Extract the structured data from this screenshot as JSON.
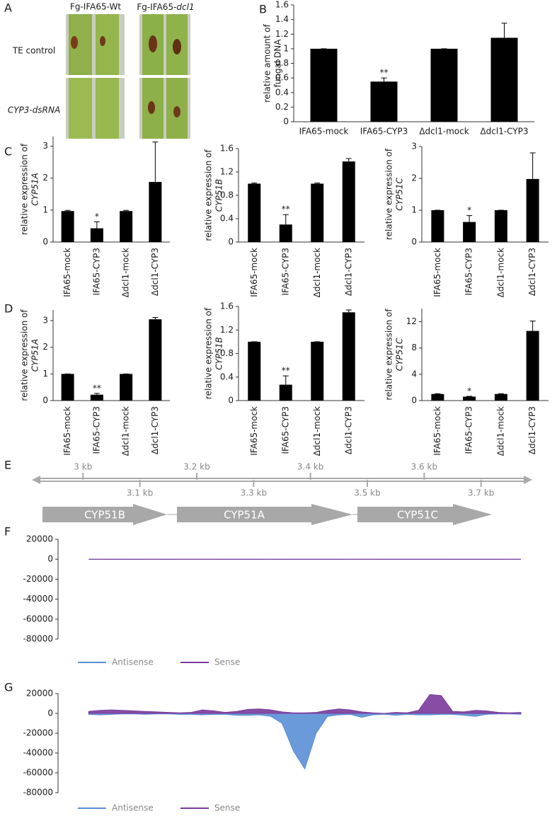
{
  "photo_panel": {
    "panel": "A",
    "columns": [
      [
        "Fg-IFA65-Wt"
      ],
      [
        "Fg-IFA65-",
        "dcl1"
      ]
    ],
    "rows": [
      "TE control",
      "CYP3-dsRNA"
    ]
  },
  "genome_track": {
    "panel": "E",
    "xlim": [
      2.91,
      3.79
    ],
    "ticks": [
      {
        "value": 3,
        "label": "3 kb"
      },
      {
        "value": 3.1,
        "label": "3.1 kb"
      },
      {
        "value": 3.2,
        "label": "3.2 kb"
      },
      {
        "value": 3.3,
        "label": "3.3 kb"
      },
      {
        "value": 3.4,
        "label": "3.4 kb"
      },
      {
        "value": 3.5,
        "label": "3.5 kb"
      },
      {
        "value": 3.6,
        "label": "3.6 kb"
      },
      {
        "value": 3.7,
        "label": "3.7 kb"
      }
    ],
    "genes": [
      "CYP51B",
      "CYP51A",
      "CYP51C"
    ]
  },
  "chart_data": [
    {
      "type": "bar",
      "panel": "B",
      "y_label": [
        "relative amount of",
        "fungal DNA"
      ],
      "categories": [
        "IFA65-mock",
        "IFA65-CYP3",
        "Δdcl1-mock",
        "Δdcl1-CYP3"
      ],
      "values": [
        1,
        0.55,
        1,
        1.15
      ],
      "errors": [
        0,
        0.05,
        0,
        0.2
      ],
      "significance": [
        null,
        "**",
        null,
        null
      ],
      "color": "#000000",
      "ylim": [
        0,
        1.6
      ],
      "yticks": [
        0,
        0.2,
        0.4,
        0.6,
        0.8,
        1,
        1.2,
        1.4,
        1.6
      ]
    },
    {
      "type": "bar",
      "panel": "C",
      "y_label": [
        "relative expression of",
        "CYP51A"
      ],
      "categories": [
        "IFA65-mock",
        "IFA65-CYP3",
        "Δdcl1-mock",
        "Δdcl1-CYP3"
      ],
      "values": [
        0.97,
        0.43,
        0.97,
        1.88
      ],
      "errors": [
        0.02,
        0.2,
        0.02,
        1.25
      ],
      "significance": [
        null,
        "*",
        null,
        null
      ],
      "color": "#000000",
      "ylim": [
        0,
        3.3
      ],
      "yticks": [
        0,
        1,
        2,
        3
      ]
    },
    {
      "type": "bar",
      "y_label": [
        "relative expression of",
        "CYP51B"
      ],
      "categories": [
        "IFA65-mock",
        "IFA65-CYP3",
        "Δdcl1-mock",
        "Δdcl1-CYP3"
      ],
      "values": [
        1,
        0.3,
        1,
        1.38
      ],
      "errors": [
        0.01,
        0.17,
        0.01,
        0.05
      ],
      "significance": [
        null,
        "**",
        null,
        null
      ],
      "color": "#000000",
      "ylim": [
        0,
        1.6
      ],
      "yticks": [
        0,
        0.4,
        0.8,
        1.2,
        1.6
      ]
    },
    {
      "type": "bar",
      "y_label": [
        "relative expression of",
        "CYP51C"
      ],
      "categories": [
        "IFA65-mock",
        "IFA65-CYP3",
        "Δdcl1-mock",
        "Δdcl1-CYP3"
      ],
      "values": [
        1,
        0.63,
        1,
        1.98
      ],
      "errors": [
        0,
        0.2,
        0,
        0.82
      ],
      "significance": [
        null,
        "*",
        null,
        null
      ],
      "color": "#000000",
      "ylim": [
        0,
        3
      ],
      "yticks": [
        0,
        1,
        2,
        3
      ]
    },
    {
      "type": "bar",
      "panel": "D",
      "y_label": [
        "relative expression of",
        "CYP51A"
      ],
      "categories": [
        "IFA65-mock",
        "IFA65-CYP3",
        "Δdcl1-mock",
        "Δdcl1-CYP3"
      ],
      "values": [
        1,
        0.22,
        1,
        3.05
      ],
      "errors": [
        0,
        0.05,
        0,
        0.07
      ],
      "significance": [
        null,
        "**",
        null,
        null
      ],
      "color": "#000000",
      "ylim": [
        0,
        3.4
      ],
      "yticks": [
        0,
        1,
        2,
        3
      ]
    },
    {
      "type": "bar",
      "y_label": [
        "relative expression of",
        "CYP51B"
      ],
      "categories": [
        "IFA65-mock",
        "IFA65-CYP3",
        "Δdcl1-mock",
        "Δdcl1-CYP3"
      ],
      "values": [
        1,
        0.27,
        1,
        1.5
      ],
      "errors": [
        0,
        0.15,
        0,
        0.04
      ],
      "significance": [
        null,
        "**",
        null,
        null
      ],
      "color": "#000000",
      "ylim": [
        0,
        1.6
      ],
      "yticks": [
        0,
        0.4,
        0.8,
        1.2,
        1.6
      ]
    },
    {
      "type": "bar",
      "y_label": [
        "relative expression of",
        "CYP51C"
      ],
      "categories": [
        "IFA65-mock",
        "IFA65-CYP3",
        "Δdcl1-mock",
        "Δdcl1-CYP3"
      ],
      "values": [
        1,
        0.6,
        1,
        10.6
      ],
      "errors": [
        0.05,
        0.05,
        0.05,
        1.5
      ],
      "significance": [
        null,
        "*",
        null,
        null
      ],
      "color": "#000000",
      "ylim": [
        0,
        14
      ],
      "yticks": [
        0,
        4,
        8,
        12
      ]
    },
    {
      "type": "area",
      "panel": "F",
      "xlim": [
        2.91,
        3.79
      ],
      "ylim": [
        -80000,
        20000
      ],
      "yticks": [
        -80000,
        -60000,
        -40000,
        -20000,
        0,
        20000
      ],
      "x": [
        3.01,
        3.03,
        3.05,
        3.07,
        3.09,
        3.11,
        3.13,
        3.15,
        3.17,
        3.19,
        3.21,
        3.23,
        3.25,
        3.27,
        3.29,
        3.31,
        3.33,
        3.35,
        3.37,
        3.39,
        3.41,
        3.43,
        3.45,
        3.47,
        3.49,
        3.51,
        3.53,
        3.55,
        3.57,
        3.59,
        3.61,
        3.63,
        3.65,
        3.67,
        3.69,
        3.71,
        3.73,
        3.75,
        3.77
      ],
      "series": [
        {
          "name": "Antisense",
          "color": "#5b8fd6",
          "values": [
            0,
            0,
            -200,
            -200,
            -200,
            0,
            0,
            -200,
            0,
            0,
            0,
            0,
            -200,
            -200,
            -200,
            -200,
            0,
            -200,
            -200,
            -200,
            -200,
            -200,
            -200,
            0,
            0,
            0,
            -200,
            -200,
            -200,
            -200,
            -200,
            -200,
            -200,
            0,
            -200,
            0,
            -200,
            0,
            0
          ]
        },
        {
          "name": "Sense",
          "color": "#7a3a9a",
          "values": [
            0,
            0,
            0,
            0,
            0,
            0,
            0,
            0,
            0,
            0,
            0,
            0,
            0,
            0,
            0,
            0,
            0,
            0,
            0,
            0,
            0,
            0,
            0,
            0,
            0,
            0,
            0,
            0,
            0,
            0,
            0,
            0,
            0,
            0,
            0,
            0,
            0,
            0,
            0
          ]
        }
      ]
    },
    {
      "type": "area",
      "panel": "G",
      "xlim": [
        2.91,
        3.79
      ],
      "ylim": [
        -80000,
        20000
      ],
      "yticks": [
        -80000,
        -60000,
        -40000,
        -20000,
        0,
        20000
      ],
      "x": [
        3.01,
        3.03,
        3.05,
        3.07,
        3.09,
        3.11,
        3.13,
        3.15,
        3.17,
        3.19,
        3.21,
        3.23,
        3.25,
        3.27,
        3.29,
        3.31,
        3.33,
        3.35,
        3.37,
        3.39,
        3.41,
        3.43,
        3.45,
        3.47,
        3.49,
        3.51,
        3.53,
        3.55,
        3.57,
        3.59,
        3.61,
        3.63,
        3.65,
        3.67,
        3.69,
        3.71,
        3.73,
        3.75,
        3.77
      ],
      "series": [
        {
          "name": "Antisense",
          "color": "#5b8fd6",
          "values": [
            -1000,
            -1500,
            -1000,
            -500,
            -500,
            -1000,
            -500,
            -500,
            -1000,
            -1000,
            -1500,
            -1000,
            -1000,
            -2000,
            -2000,
            -1500,
            -3000,
            -10000,
            -38000,
            -56000,
            -20000,
            -3000,
            -1500,
            -1000,
            -4000,
            -1500,
            -1000,
            -2000,
            -1000,
            -1500,
            -1500,
            -1000,
            -1000,
            -2000,
            -3000,
            -1000,
            -500,
            -500,
            -1000
          ]
        },
        {
          "name": "Sense",
          "color": "#7a3a9a",
          "values": [
            2000,
            3000,
            3500,
            3000,
            2500,
            2000,
            1500,
            1000,
            500,
            1000,
            3500,
            2500,
            1000,
            2000,
            4000,
            4500,
            3500,
            1500,
            500,
            500,
            1000,
            3000,
            4500,
            3500,
            1500,
            500,
            0,
            1000,
            500,
            3000,
            19000,
            18000,
            2000,
            1500,
            3000,
            2500,
            1000,
            500,
            1000
          ]
        }
      ]
    }
  ]
}
